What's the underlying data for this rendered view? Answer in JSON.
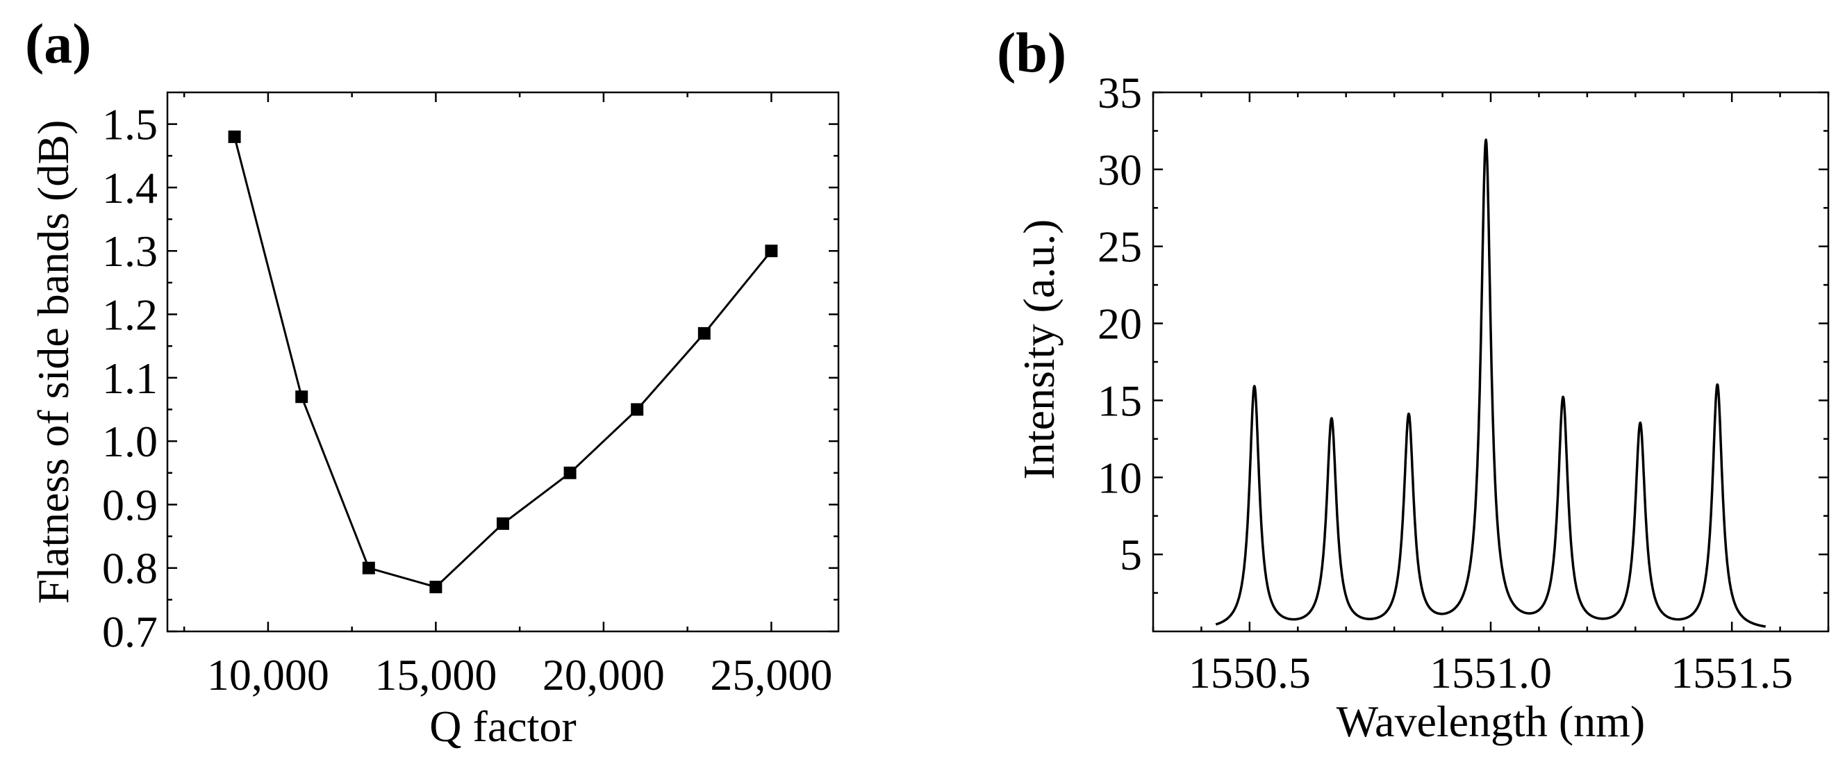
{
  "chart_data": [
    {
      "panel": "(a)",
      "type": "line",
      "markers": "square",
      "xlabel": "Q factor",
      "ylabel": "Flatness of side bands (dB)",
      "xlim": [
        7000,
        27000
      ],
      "ylim": [
        0.7,
        1.55
      ],
      "xticks": [
        10000,
        15000,
        20000,
        25000
      ],
      "xtick_labels": [
        "10,000",
        "15,000",
        "20,000",
        "25,000"
      ],
      "yticks": [
        0.7,
        0.8,
        0.9,
        1.0,
        1.1,
        1.2,
        1.3,
        1.4,
        1.5
      ],
      "ytick_labels": [
        "0.7",
        "0.8",
        "0.9",
        "1.0",
        "1.1",
        "1.2",
        "1.3",
        "1.4",
        "1.5"
      ],
      "series": [
        {
          "name": "Flatness",
          "x": [
            9000,
            11000,
            13000,
            15000,
            17000,
            19000,
            21000,
            23000,
            25000
          ],
          "y": [
            1.48,
            1.07,
            0.8,
            0.77,
            0.87,
            0.95,
            1.05,
            1.17,
            1.3
          ]
        }
      ]
    },
    {
      "panel": "(b)",
      "type": "line",
      "xlabel": "Wavelength (nm)",
      "ylabel": "Intensity (a.u.)",
      "xlim": [
        1550.3,
        1551.7
      ],
      "ylim": [
        0,
        35
      ],
      "xticks": [
        1550.5,
        1551.0,
        1551.5
      ],
      "xtick_labels": [
        "1550.5",
        "1551.0",
        "1551.5"
      ],
      "yticks": [
        5,
        10,
        15,
        20,
        25,
        30,
        35
      ],
      "ytick_labels": [
        "5",
        "10",
        "15",
        "20",
        "25",
        "30",
        "35"
      ],
      "x_range": [
        1550.43,
        1551.57
      ],
      "peaks": [
        {
          "x": 1550.51,
          "y": 15.8
        },
        {
          "x": 1550.67,
          "y": 13.6
        },
        {
          "x": 1550.83,
          "y": 13.8
        },
        {
          "x": 1550.99,
          "y": 31.7
        },
        {
          "x": 1551.15,
          "y": 14.9
        },
        {
          "x": 1551.31,
          "y": 13.3
        },
        {
          "x": 1551.47,
          "y": 15.9
        }
      ],
      "baseline_min": 0.15,
      "linewidth_nm": 0.0125
    }
  ]
}
